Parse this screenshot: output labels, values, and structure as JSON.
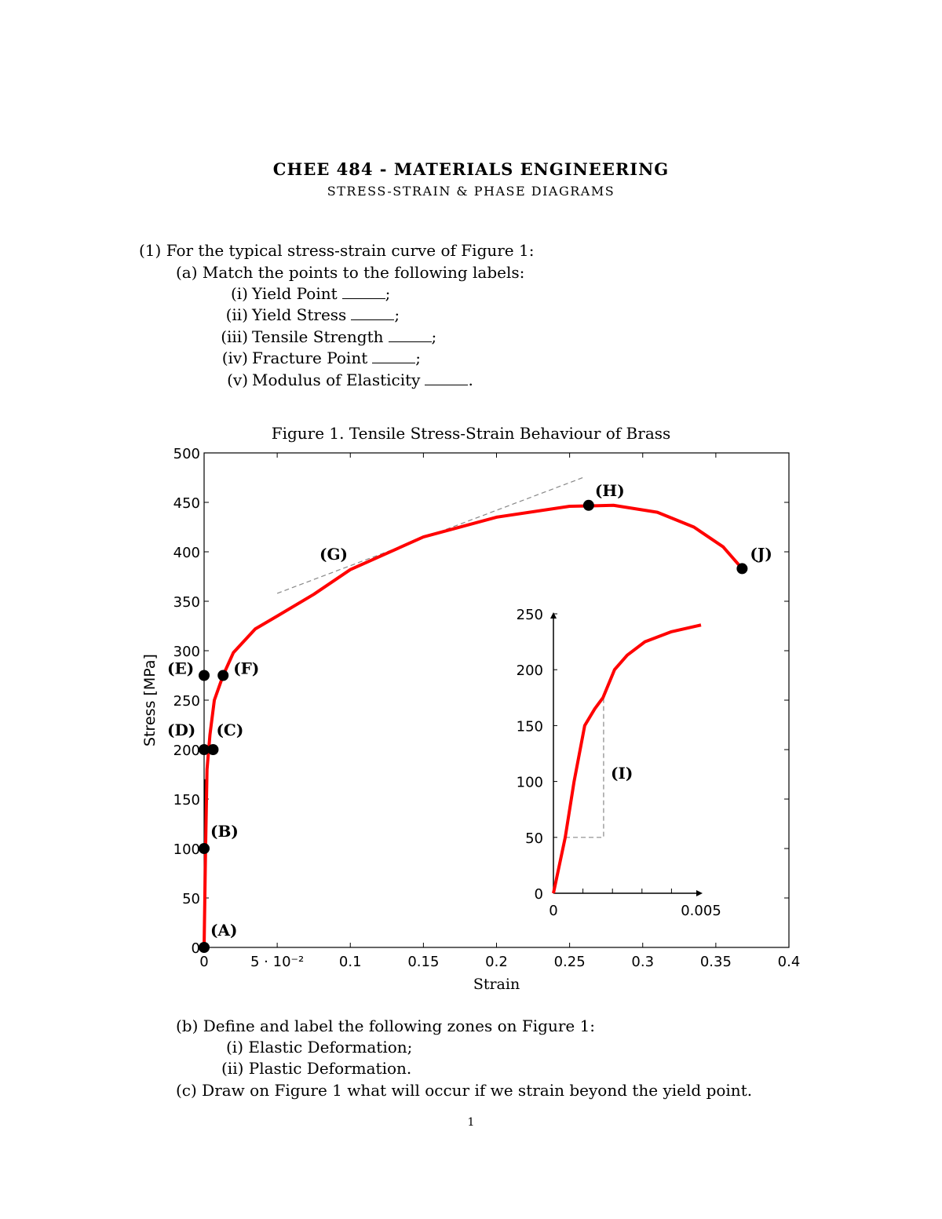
{
  "header": {
    "title": "CHEE 484 - MATERIALS ENGINEERING",
    "subtitle": "STRESS-STRAIN & PHASE DIAGRAMS"
  },
  "question1": {
    "intro": "(1) For the typical stress-strain curve of Figure 1:",
    "part_a": "(a) Match the points to the following labels:",
    "items": [
      {
        "num": "(i)",
        "text": "Yield Point",
        "end": ";"
      },
      {
        "num": "(ii)",
        "text": "Yield Stress",
        "end": ";"
      },
      {
        "num": "(iii)",
        "text": "Tensile Strength",
        "end": ";"
      },
      {
        "num": "(iv)",
        "text": "Fracture Point",
        "end": ";"
      },
      {
        "num": "(v)",
        "text": "Modulus of Elasticity",
        "end": "."
      }
    ],
    "part_b": "(b) Define and label the following zones on Figure 1:",
    "part_b_items": [
      "(i) Elastic Deformation;",
      "(ii) Plastic Deformation."
    ],
    "part_c": "(c) Draw on Figure 1 what will occur if we strain beyond the yield point."
  },
  "figure_caption": "Figure 1. Tensile Stress-Strain Behaviour of Brass",
  "page_number": "1",
  "chart_data": [
    {
      "type": "line",
      "xlabel": "Strain",
      "ylabel": "Stress [MPa]",
      "xlim": [
        0,
        0.4
      ],
      "ylim": [
        0,
        500
      ],
      "xticks": [
        "0",
        "5 · 10⁻²",
        "0.1",
        "0.15",
        "0.2",
        "0.25",
        "0.3",
        "0.35",
        "0.4"
      ],
      "xtick_values": [
        0,
        0.05,
        0.1,
        0.15,
        0.2,
        0.25,
        0.3,
        0.35,
        0.4
      ],
      "yticks": [
        0,
        50,
        100,
        150,
        200,
        250,
        300,
        350,
        400,
        450,
        500
      ],
      "grid": false,
      "line_color": "#ff0000",
      "curve": {
        "x": [
          0,
          0.001,
          0.002,
          0.004,
          0.007,
          0.013,
          0.02,
          0.035,
          0.05,
          0.075,
          0.1,
          0.15,
          0.2,
          0.25,
          0.28,
          0.31,
          0.335,
          0.355,
          0.368
        ],
        "y": [
          0,
          100,
          180,
          215,
          250,
          275,
          298,
          322,
          335,
          357,
          382,
          415,
          435,
          446,
          447,
          440,
          425,
          405,
          383
        ]
      },
      "tangent_line": {
        "x": [
          0.05,
          0.259
        ],
        "y": [
          358,
          475
        ]
      },
      "points": [
        {
          "label": "(A)",
          "x": 0,
          "y": 0
        },
        {
          "label": "(B)",
          "x": 0,
          "y": 100
        },
        {
          "label": "(C)",
          "x": 0.004,
          "y": 200
        },
        {
          "label": "(D)",
          "x": 0,
          "y": 200
        },
        {
          "label": "(E)",
          "x": 0,
          "y": 275
        },
        {
          "label": "(F)",
          "x": 0.013,
          "y": 275
        },
        {
          "label": "(H)",
          "x": 0.263,
          "y": 447
        },
        {
          "label": "(J)",
          "x": 0.368,
          "y": 383
        }
      ],
      "annotations": [
        {
          "label": "(G)",
          "x": 0.09,
          "y": 400
        }
      ]
    },
    {
      "type": "line",
      "xlim": [
        0,
        0.005
      ],
      "ylim": [
        0,
        250
      ],
      "xticks": [
        "0",
        "0.005"
      ],
      "xtick_values": [
        0,
        0.005
      ],
      "yticks": [
        0,
        50,
        100,
        150,
        200,
        250
      ],
      "curve": {
        "x": [
          0,
          0.0004,
          0.0007,
          0.00106,
          0.0014,
          0.00168,
          0.00207,
          0.0025,
          0.0031,
          0.004,
          0.005
        ],
        "y": [
          0,
          50,
          100,
          150,
          165,
          175,
          200,
          213,
          225,
          234,
          240
        ]
      },
      "slope_triangle": {
        "x": [
          0.0004,
          0.0017
        ],
        "y": [
          50,
          175
        ]
      },
      "annotations": [
        {
          "label": "(I)"
        }
      ]
    }
  ]
}
